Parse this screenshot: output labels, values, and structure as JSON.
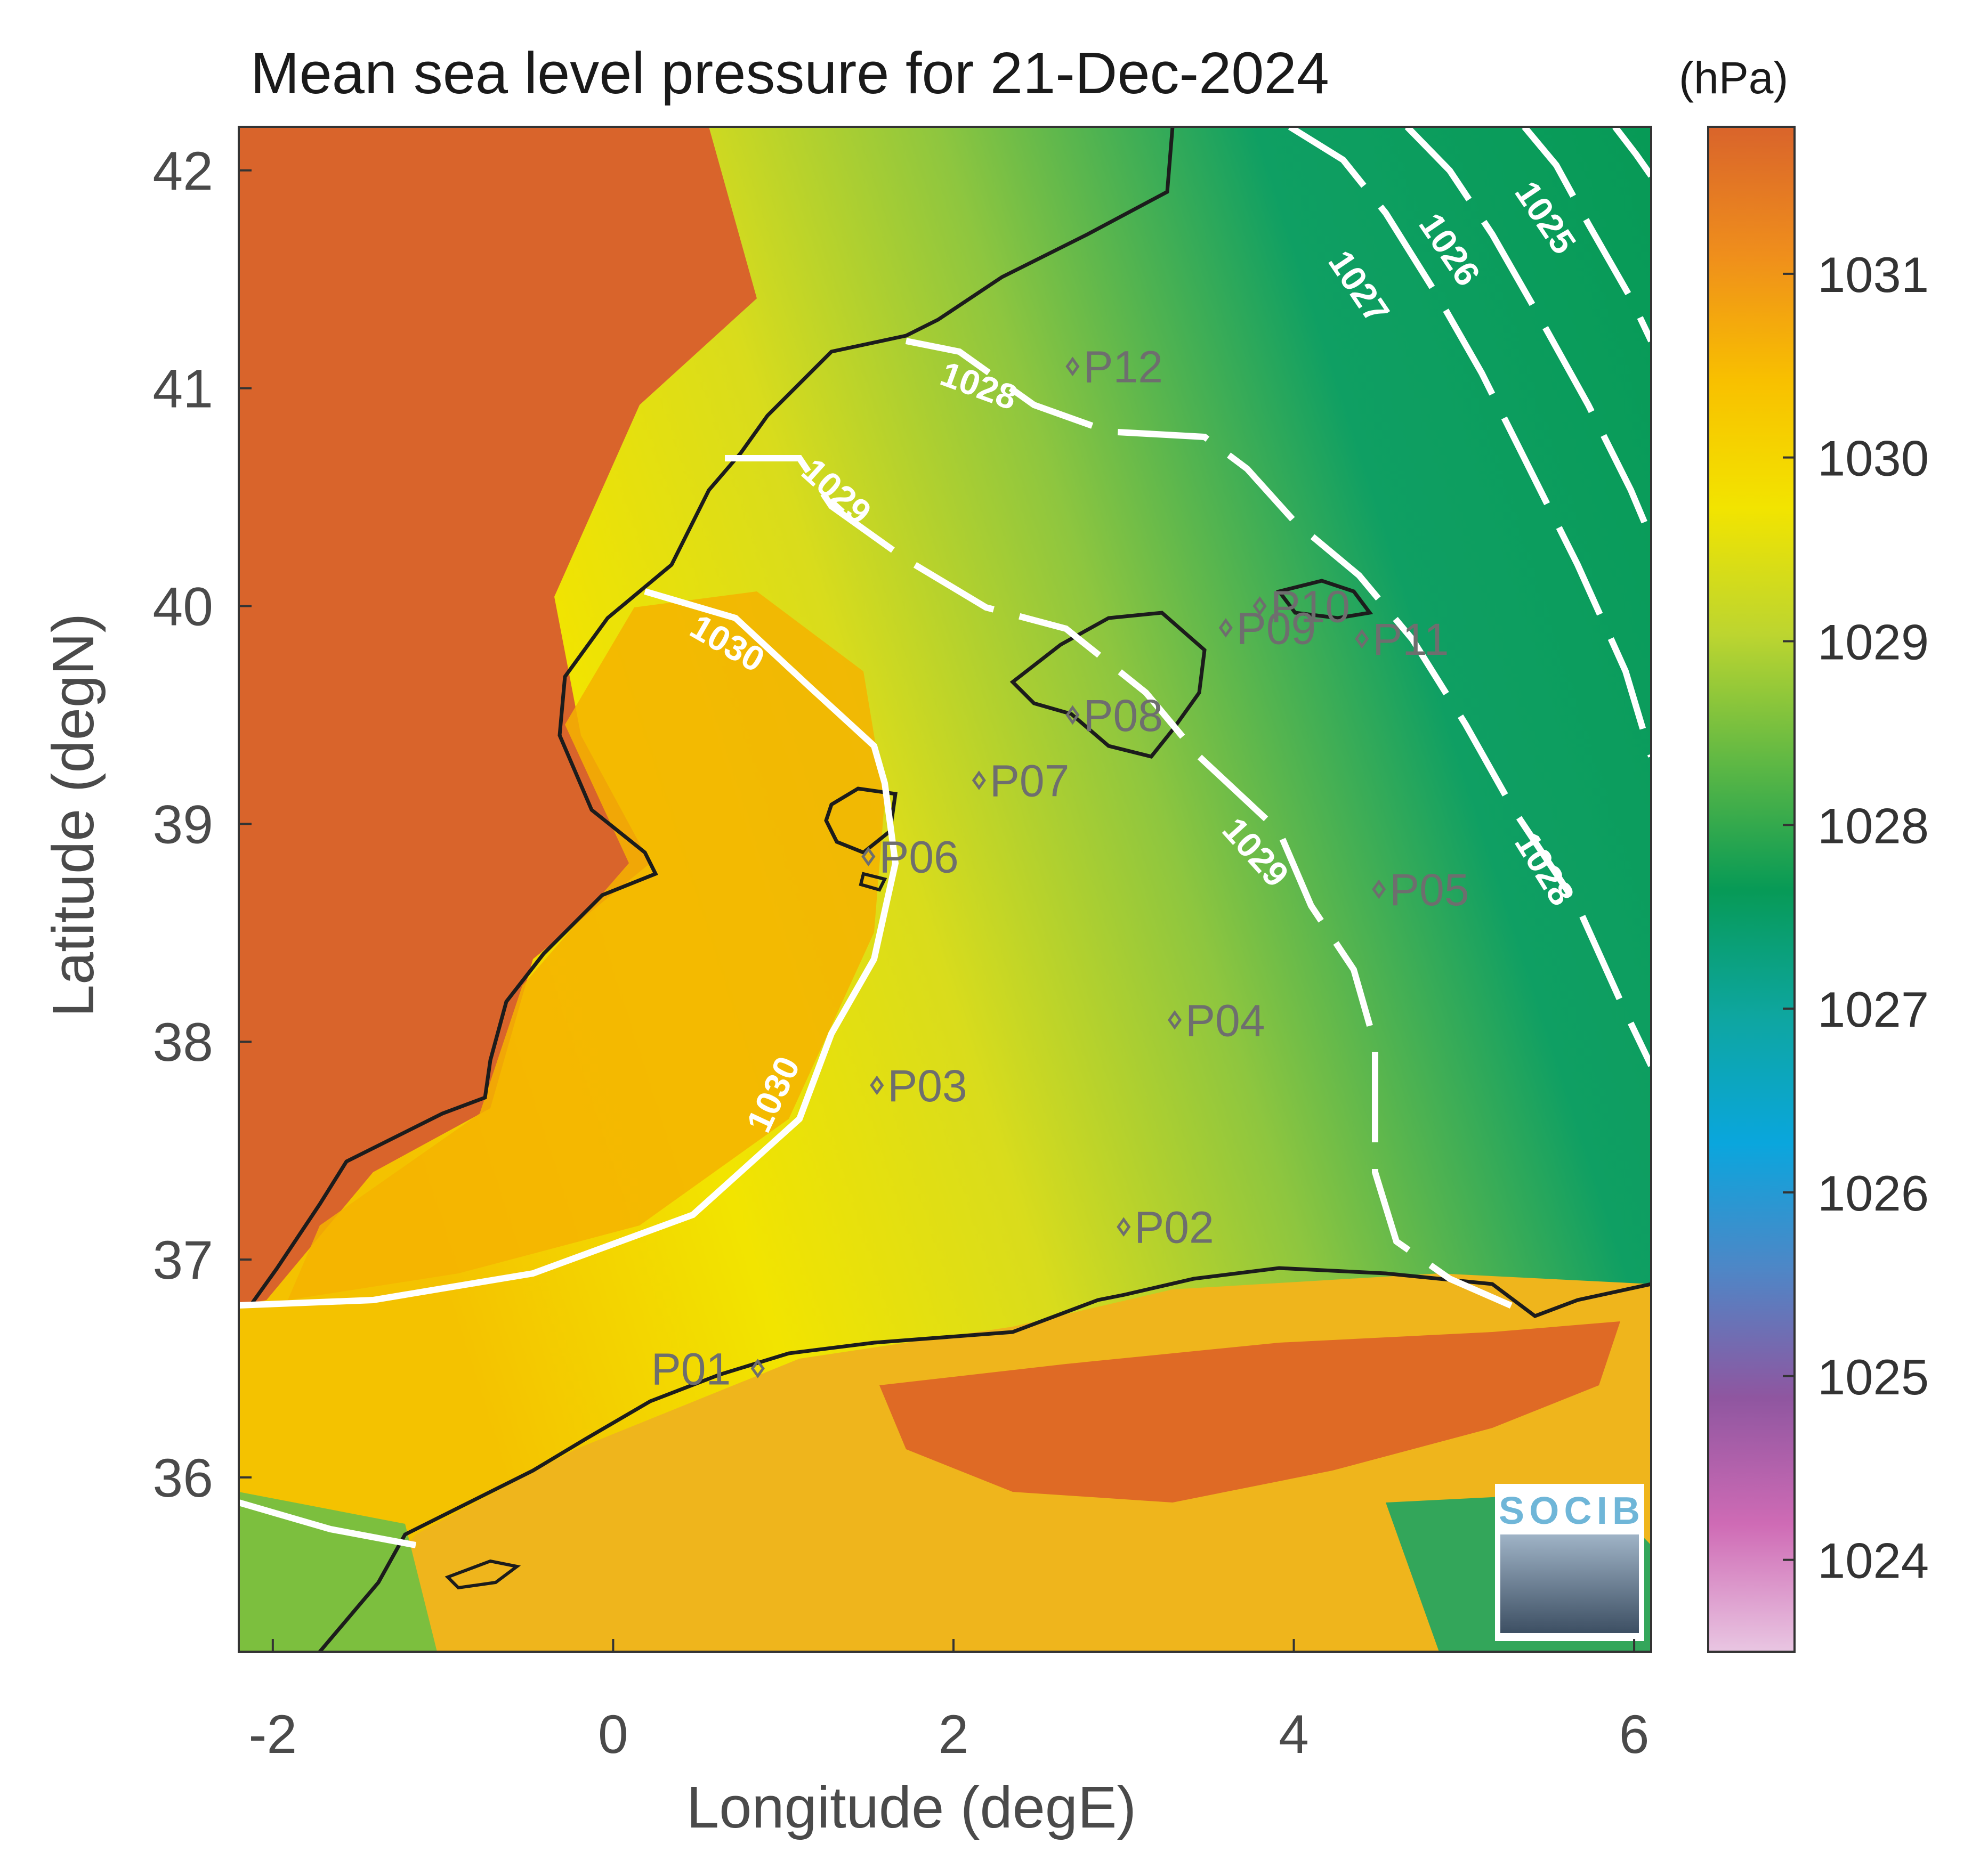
{
  "figure": {
    "title": "Mean sea level pressure for 21-Dec-2024",
    "xlabel": "Longitude (degE)",
    "ylabel": "Latitude (degN)",
    "x_ticks": [
      "-2",
      "0",
      "2",
      "4",
      "6"
    ],
    "y_ticks": [
      "36",
      "37",
      "38",
      "39",
      "40",
      "41",
      "42"
    ],
    "extent": {
      "lon": [
        -2.2,
        6.1
      ],
      "lat": [
        35.2,
        42.2
      ]
    }
  },
  "colorbar": {
    "unit": "(hPa)",
    "range": [
      1023.5,
      1031.8
    ],
    "ticks": [
      "1024",
      "1025",
      "1026",
      "1027",
      "1028",
      "1029",
      "1030",
      "1031"
    ],
    "colors": [
      "#e9c6e2",
      "#cf6bb5",
      "#8f56a0",
      "#4f86c6",
      "#0aa6dd",
      "#0ea6a0",
      "#079a56",
      "#5fb844",
      "#bcd530",
      "#f2e400",
      "#f8c000",
      "#ef8e1c",
      "#d9642b"
    ]
  },
  "contour_labels": [
    "1025",
    "1026",
    "1027",
    "1028",
    "1029",
    "1030"
  ],
  "points": [
    {
      "label": "P01",
      "lon": 0.85,
      "lat": 36.5
    },
    {
      "label": "P02",
      "lon": 3.0,
      "lat": 37.15
    },
    {
      "label": "P03",
      "lon": 1.55,
      "lat": 37.8
    },
    {
      "label": "P04",
      "lon": 3.3,
      "lat": 38.1
    },
    {
      "label": "P05",
      "lon": 4.5,
      "lat": 38.7
    },
    {
      "label": "P06",
      "lon": 1.5,
      "lat": 38.85
    },
    {
      "label": "P07",
      "lon": 2.15,
      "lat": 39.2
    },
    {
      "label": "P08",
      "lon": 2.7,
      "lat": 39.5
    },
    {
      "label": "P09",
      "lon": 3.6,
      "lat": 39.9
    },
    {
      "label": "P10",
      "lon": 3.8,
      "lat": 40.0
    },
    {
      "label": "P11",
      "lon": 4.4,
      "lat": 39.85
    },
    {
      "label": "P12",
      "lon": 2.7,
      "lat": 41.1
    }
  ],
  "logo": {
    "text": "SOCIB"
  }
}
